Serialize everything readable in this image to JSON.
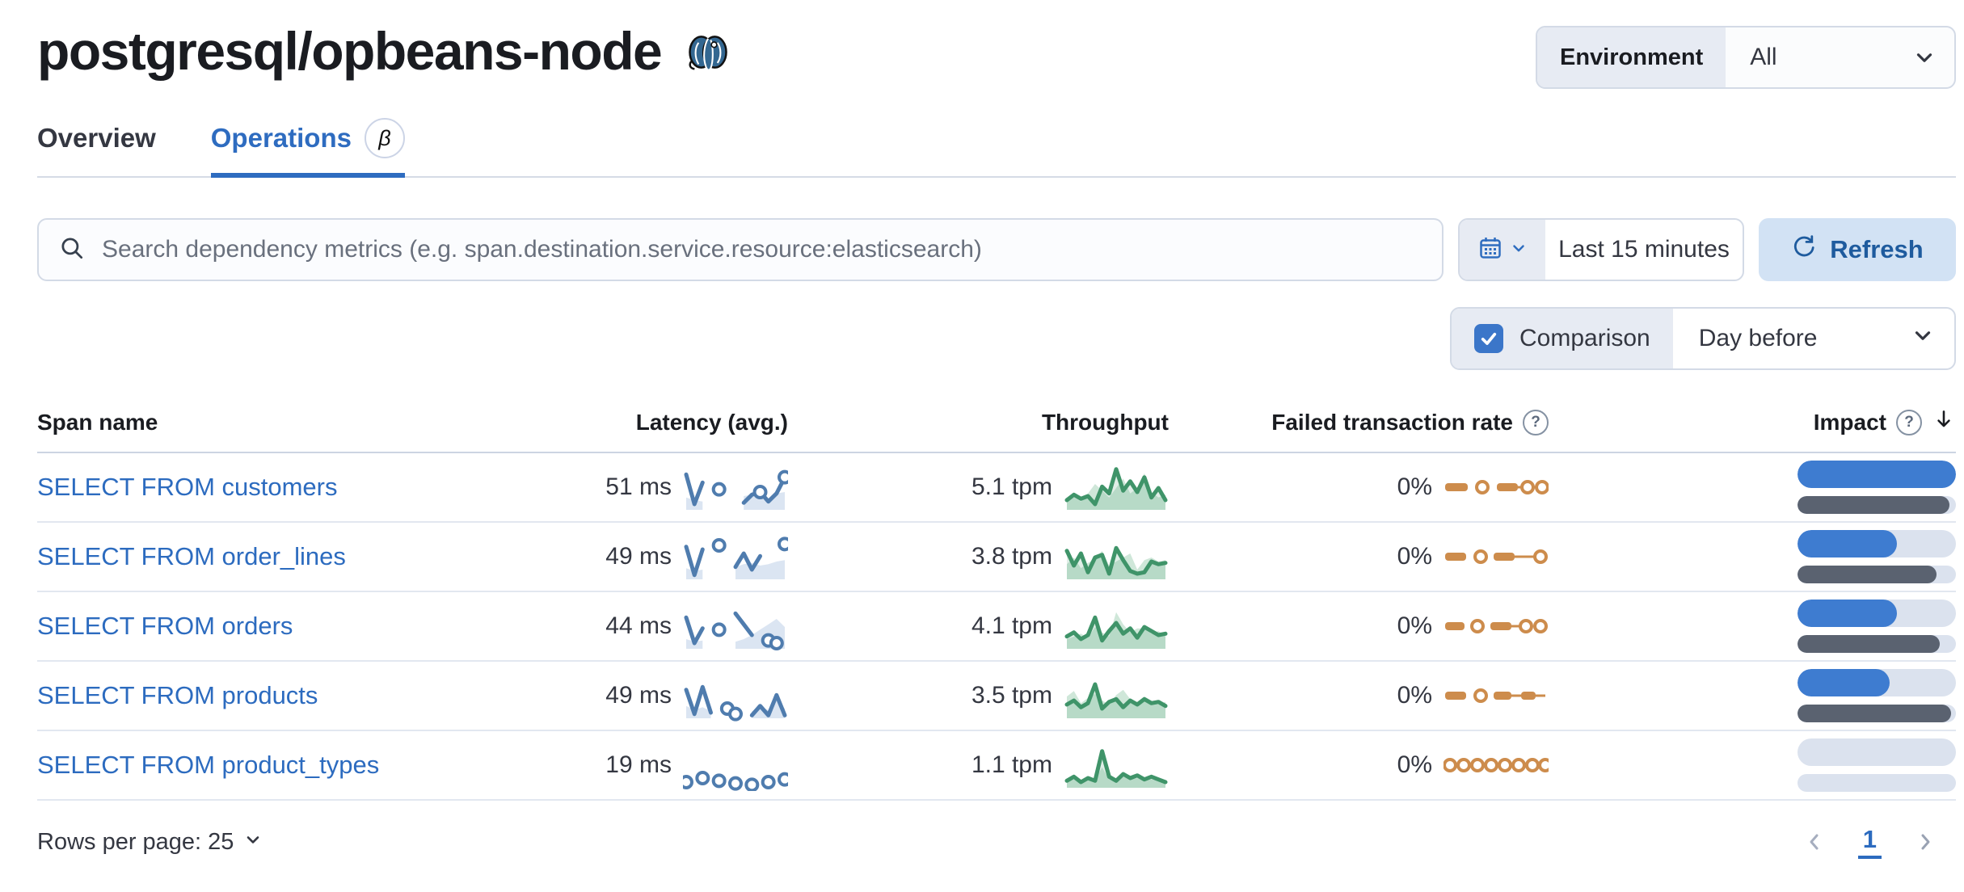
{
  "header": {
    "title": "postgresql/opbeans-node",
    "logo": "postgresql-elephant"
  },
  "environment": {
    "label": "Environment",
    "value": "All"
  },
  "tabs": [
    {
      "label": "Overview",
      "active": false
    },
    {
      "label": "Operations",
      "active": true,
      "badge": "β"
    }
  ],
  "toolbar": {
    "search_placeholder": "Search dependency metrics (e.g. span.destination.service.resource:elasticsearch)",
    "time_range": "Last 15 minutes",
    "refresh_label": "Refresh",
    "comparison_label": "Comparison",
    "comparison_checked": true,
    "comparison_value": "Day before"
  },
  "icons": {
    "question": "?"
  },
  "colors": {
    "link_blue": "#2c6bbf",
    "tab_blue": "#2e6cc0",
    "refresh_bg": "#d2e2f4",
    "refresh_text": "#1e5b9e",
    "latency_line": "#4f7cae",
    "latency_area": "#dbe5f2",
    "throughput_line": "#3f9469",
    "throughput_area": "#cfe7d9",
    "failed_orange": "#cd8c4c",
    "impact_blue": "#3e7cd0",
    "impact_gray": "#5a6270",
    "impact_track": "#dbe2ee",
    "postgres_blue": "#336791"
  },
  "table": {
    "columns": [
      "Span name",
      "Latency (avg.)",
      "Throughput",
      "Failed transaction rate",
      "Impact"
    ],
    "rows": [
      {
        "span_name": "SELECT FROM customers",
        "latency": "51 ms",
        "throughput": "5.1 tpm",
        "failed_rate": "0%",
        "latency_spark": {
          "current": [
            50,
            6,
            38,
            null,
            28,
            null,
            null,
            8,
            20,
            24,
            10,
            22,
            46
          ],
          "previous": [
            16,
            12,
            10,
            null,
            null,
            null,
            null,
            18,
            20,
            16,
            14,
            22,
            24
          ],
          "markers": [
            4,
            9,
            12
          ]
        },
        "throughput_spark": {
          "current": [
            12,
            20,
            14,
            18,
            6,
            32,
            22,
            58,
            26,
            40,
            24,
            46,
            16,
            30,
            12
          ],
          "previous": [
            10,
            16,
            10,
            22,
            36,
            26,
            16,
            30,
            44,
            22,
            30,
            52,
            24,
            16,
            20
          ]
        },
        "failed_spark": [
          [
            "dash",
            2,
            30
          ],
          [
            "circle",
            48
          ],
          [
            "dash",
            66,
            92
          ],
          [
            "wire",
            92,
            126
          ],
          [
            "circle",
            104
          ],
          [
            "circle",
            122
          ]
        ],
        "impact": {
          "current_pct": 100,
          "previous_pct": 96
        }
      },
      {
        "span_name": "SELECT FROM order_lines",
        "latency": "49 ms",
        "throughput": "3.8 tpm",
        "failed_rate": "0%",
        "latency_spark": {
          "current": [
            46,
            4,
            42,
            null,
            48,
            null,
            16,
            36,
            12,
            32,
            null,
            null,
            50
          ],
          "previous": [
            14,
            10,
            12,
            null,
            null,
            null,
            16,
            20,
            22,
            18,
            20,
            24,
            26
          ],
          "markers": [
            4,
            12
          ]
        },
        "throughput_spark": {
          "current": [
            40,
            18,
            36,
            8,
            30,
            34,
            6,
            44,
            26,
            10,
            6,
            8,
            24,
            20,
            22
          ],
          "previous": [
            20,
            30,
            14,
            22,
            28,
            40,
            18,
            24,
            30,
            36,
            12,
            26,
            30,
            24,
            26
          ]
        },
        "failed_spark": [
          [
            "dash",
            2,
            28
          ],
          [
            "circle",
            46
          ],
          [
            "dash",
            62,
            88
          ],
          [
            "wire",
            88,
            122
          ],
          [
            "circle",
            120
          ]
        ],
        "impact": {
          "current_pct": 63,
          "previous_pct": 88
        }
      },
      {
        "span_name": "SELECT FROM orders",
        "latency": "44 ms",
        "throughput": "4.1 tpm",
        "failed_rate": "0%",
        "latency_spark": {
          "current": [
            44,
            6,
            28,
            null,
            26,
            null,
            50,
            34,
            18,
            null,
            10,
            6,
            null
          ],
          "previous": [
            12,
            8,
            10,
            null,
            null,
            null,
            8,
            12,
            18,
            26,
            34,
            42,
            30
          ],
          "markers": [
            4,
            10,
            11
          ]
        },
        "throughput_spark": {
          "current": [
            16,
            22,
            12,
            18,
            44,
            10,
            24,
            36,
            20,
            28,
            14,
            30,
            24,
            18,
            20
          ],
          "previous": [
            12,
            16,
            20,
            14,
            30,
            22,
            16,
            52,
            34,
            22,
            28,
            28,
            20,
            24,
            16
          ]
        },
        "failed_spark": [
          [
            "dash",
            2,
            26
          ],
          [
            "circle",
            42
          ],
          [
            "dash",
            58,
            84
          ],
          [
            "wire",
            84,
            102
          ],
          [
            "circle",
            102
          ],
          [
            "circle",
            120
          ]
        ],
        "impact": {
          "current_pct": 63,
          "previous_pct": 90
        }
      },
      {
        "span_name": "SELECT FROM products",
        "latency": "49 ms",
        "throughput": "3.5 tpm",
        "failed_rate": "0%",
        "latency_spark": {
          "current": [
            40,
            4,
            44,
            6,
            null,
            12,
            4,
            null,
            2,
            16,
            2,
            32,
            2
          ],
          "previous": [
            16,
            10,
            14,
            8,
            null,
            null,
            null,
            null,
            8,
            14,
            10,
            24,
            12
          ],
          "markers": [
            5,
            6
          ]
        },
        "throughput_spark": {
          "current": [
            18,
            24,
            14,
            20,
            48,
            12,
            22,
            26,
            14,
            24,
            18,
            26,
            20,
            22,
            16
          ],
          "previous": [
            30,
            38,
            20,
            28,
            34,
            24,
            18,
            32,
            40,
            26,
            22,
            30,
            24,
            18,
            22
          ]
        },
        "failed_spark": [
          [
            "dash",
            2,
            28
          ],
          [
            "circle",
            46
          ],
          [
            "dash",
            62,
            84
          ],
          [
            "wire",
            84,
            96
          ],
          [
            "dash",
            96,
            114
          ],
          [
            "wire",
            114,
            126
          ]
        ],
        "impact": {
          "current_pct": 58,
          "previous_pct": 97
        }
      },
      {
        "span_name": "SELECT FROM product_types",
        "latency": "19 ms",
        "throughput": "1.1 tpm",
        "failed_rate": "0%",
        "latency_spark": {
          "current": [
            6,
            null,
            12,
            null,
            8,
            null,
            4,
            null,
            2,
            null,
            6,
            null,
            10
          ],
          "previous": [],
          "markers": [
            0,
            2,
            4,
            6,
            8,
            10,
            12
          ]
        },
        "throughput_spark": {
          "current": [
            8,
            14,
            6,
            12,
            8,
            52,
            14,
            8,
            18,
            12,
            16,
            10,
            14,
            10,
            6
          ],
          "previous": [
            6,
            10,
            8,
            14,
            10,
            28,
            10,
            12,
            14,
            10,
            12,
            8,
            10,
            8,
            6
          ]
        },
        "failed_spark": [
          [
            "circle",
            8
          ],
          [
            "circle",
            25
          ],
          [
            "circle",
            42
          ],
          [
            "circle",
            59
          ],
          [
            "circle",
            76
          ],
          [
            "circle",
            93
          ],
          [
            "circle",
            110
          ],
          [
            "circle",
            126
          ]
        ],
        "impact": {
          "current_pct": 0,
          "previous_pct": 0
        }
      }
    ]
  },
  "footer": {
    "rows_per_page_label": "Rows per page: 25",
    "page": "1"
  }
}
